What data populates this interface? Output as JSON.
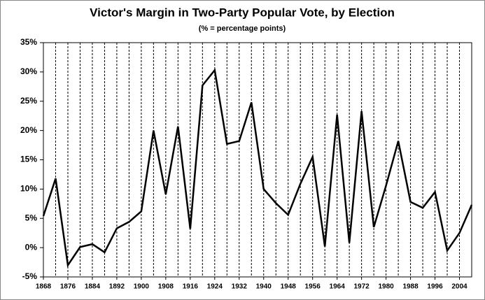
{
  "chart_data": {
    "type": "line",
    "title": "Victor's Margin in Two-Party Popular Vote, by Election",
    "subtitle": "(% = percentage points)",
    "x": [
      1868,
      1872,
      1876,
      1880,
      1884,
      1888,
      1892,
      1896,
      1900,
      1904,
      1908,
      1912,
      1916,
      1920,
      1924,
      1928,
      1932,
      1936,
      1940,
      1944,
      1948,
      1952,
      1956,
      1960,
      1964,
      1968,
      1972,
      1976,
      1980,
      1984,
      1988,
      1992,
      1996,
      2000,
      2004,
      2008
    ],
    "values": [
      5.4,
      11.8,
      -3.0,
      0.1,
      0.6,
      -0.8,
      3.3,
      4.4,
      6.2,
      20.0,
      9.1,
      20.7,
      3.2,
      27.7,
      30.3,
      17.7,
      18.2,
      24.8,
      10.0,
      7.6,
      5.6,
      10.9,
      15.5,
      0.2,
      22.7,
      0.8,
      23.3,
      3.5,
      10.6,
      18.2,
      7.8,
      6.8,
      9.5,
      -0.5,
      2.5,
      7.3
    ],
    "color": "#000000",
    "xlim": [
      1868,
      2008
    ],
    "xticks": [
      1868,
      1876,
      1884,
      1892,
      1900,
      1908,
      1916,
      1924,
      1932,
      1940,
      1948,
      1956,
      1964,
      1972,
      1980,
      1988,
      1996,
      2004
    ],
    "ylim": [
      -5,
      35
    ],
    "yticks": [
      {
        "value": -5,
        "label": "-5%"
      },
      {
        "value": 0,
        "label": "0%"
      },
      {
        "value": 5,
        "label": "5%"
      },
      {
        "value": 10,
        "label": "10%"
      },
      {
        "value": 15,
        "label": "15%"
      },
      {
        "value": 20,
        "label": "20%"
      },
      {
        "value": 25,
        "label": "25%"
      },
      {
        "value": 30,
        "label": "30%"
      },
      {
        "value": 35,
        "label": "35%"
      }
    ],
    "grid": true
  }
}
